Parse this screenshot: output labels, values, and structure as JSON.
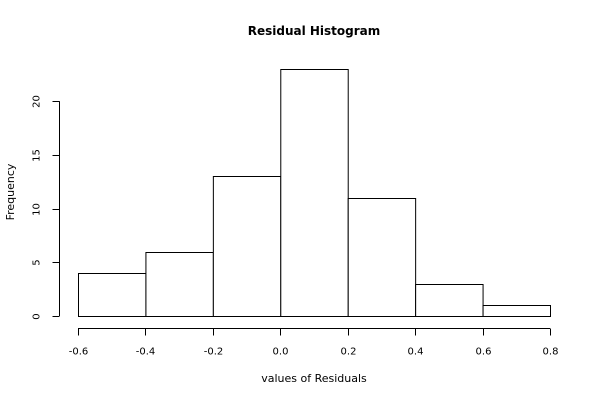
{
  "chart_data": {
    "type": "bar",
    "title": "Residual Histogram",
    "xlabel": "values of Residuals",
    "ylabel": "Frequency",
    "bins": [
      {
        "from": -0.6,
        "to": -0.4,
        "count": 4
      },
      {
        "from": -0.4,
        "to": -0.2,
        "count": 6
      },
      {
        "from": -0.2,
        "to": 0.0,
        "count": 13
      },
      {
        "from": 0.0,
        "to": 0.2,
        "count": 23
      },
      {
        "from": 0.2,
        "to": 0.4,
        "count": 11
      },
      {
        "from": 0.4,
        "to": 0.6,
        "count": 3
      },
      {
        "from": 0.6,
        "to": 0.8,
        "count": 1
      }
    ],
    "xlim": [
      -0.6,
      0.8
    ],
    "ylim": [
      0,
      23
    ],
    "x_ticks": [
      "-0.6",
      "-0.4",
      "-0.2",
      "0.0",
      "0.2",
      "0.4",
      "0.6",
      "0.8"
    ],
    "y_ticks": [
      "0",
      "5",
      "10",
      "15",
      "20"
    ],
    "grid": false
  }
}
